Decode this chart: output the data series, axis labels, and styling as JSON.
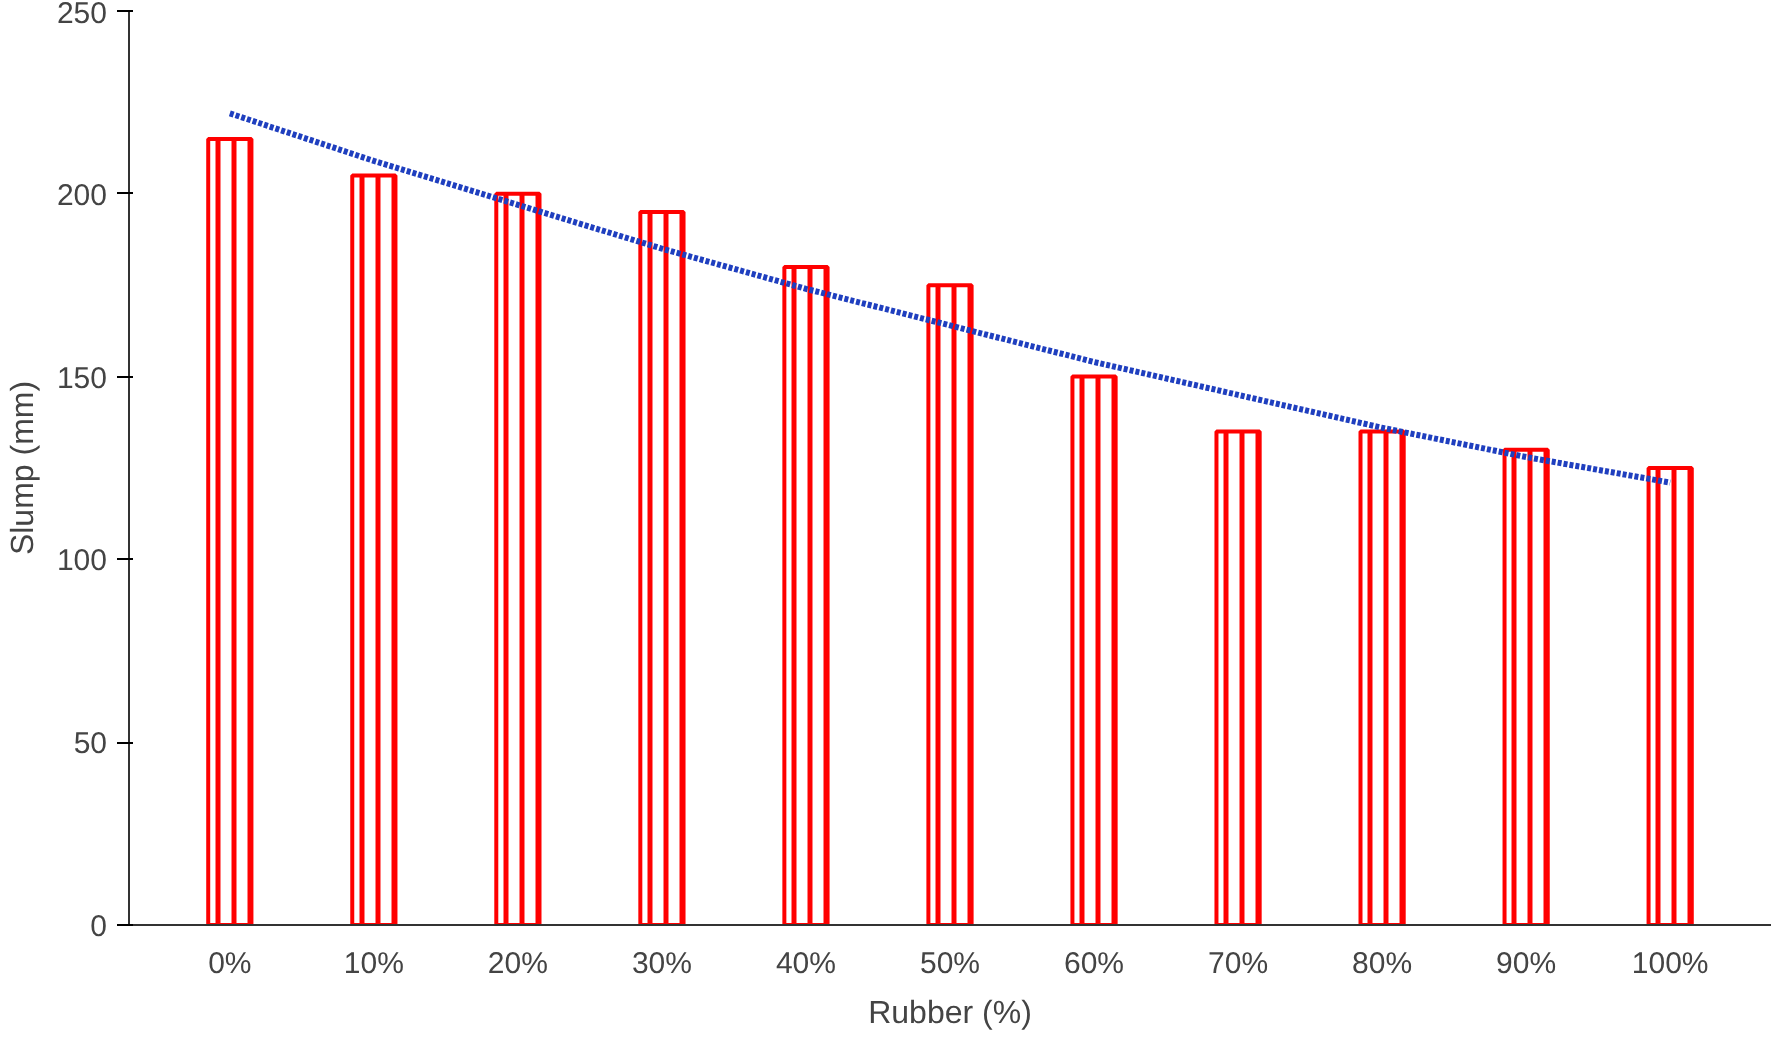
{
  "chart_data": {
    "type": "bar",
    "xlabel": "Rubber (%)",
    "ylabel": "Slump (mm)",
    "categories": [
      "0%",
      "10%",
      "20%",
      "30%",
      "40%",
      "50%",
      "60%",
      "70%",
      "80%",
      "90%",
      "100%"
    ],
    "series": [
      {
        "color": "#ff0000",
        "values": [
          215,
          205,
          200,
          195,
          180,
          175,
          150,
          135,
          135,
          130,
          125
        ]
      },
      {
        "type": "line",
        "color": "#1f3fbf",
        "line_style": "dotted",
        "x": [
          "0%",
          "10%",
          "20%",
          "30%",
          "40%",
          "50%",
          "60%",
          "70%",
          "80%",
          "90%",
          "100%"
        ],
        "values": [
          222,
          209,
          197,
          185,
          174,
          164,
          154,
          145,
          136,
          128,
          121
        ]
      }
    ],
    "ylim": [
      0,
      250
    ],
    "yticks": [
      0,
      50,
      100,
      150,
      200,
      250
    ],
    "grid": false
  }
}
